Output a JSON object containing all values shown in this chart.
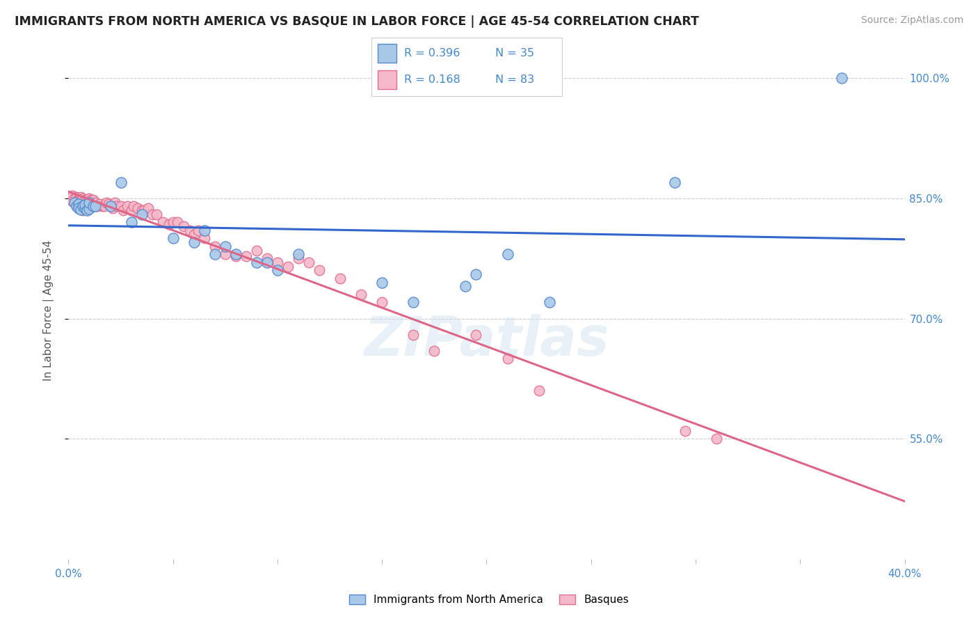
{
  "title": "IMMIGRANTS FROM NORTH AMERICA VS BASQUE IN LABOR FORCE | AGE 45-54 CORRELATION CHART",
  "source_text": "Source: ZipAtlas.com",
  "ylabel": "In Labor Force | Age 45-54",
  "xlim": [
    0.0,
    0.4
  ],
  "ylim": [
    0.4,
    1.02
  ],
  "ytick_positions": [
    0.55,
    0.7,
    0.85,
    1.0
  ],
  "ytick_labels": [
    "55.0%",
    "70.0%",
    "85.0%",
    "100.0%"
  ],
  "legend_labels": [
    "Immigrants from North America",
    "Basques"
  ],
  "blue_R": 0.396,
  "blue_N": 35,
  "pink_R": 0.168,
  "pink_N": 83,
  "blue_color": "#a8c8e8",
  "pink_color": "#f5b8c8",
  "blue_edge_color": "#5588cc",
  "pink_edge_color": "#e07090",
  "blue_line_color": "#3366cc",
  "pink_line_color": "#dd6688",
  "title_color": "#222222",
  "axis_label_color": "#4488cc",
  "source_color": "#999999",
  "watermark": "ZIPatlas",
  "blue_scatter_x": [
    0.003,
    0.004,
    0.005,
    0.005,
    0.006,
    0.007,
    0.008,
    0.008,
    0.009,
    0.01,
    0.01,
    0.012,
    0.013,
    0.02,
    0.025,
    0.03,
    0.035,
    0.05,
    0.06,
    0.065,
    0.07,
    0.075,
    0.08,
    0.09,
    0.095,
    0.1,
    0.11,
    0.15,
    0.165,
    0.19,
    0.195,
    0.21,
    0.23,
    0.29,
    0.37
  ],
  "blue_scatter_y": [
    0.845,
    0.84,
    0.843,
    0.838,
    0.836,
    0.84,
    0.838,
    0.842,
    0.835,
    0.837,
    0.845,
    0.84,
    0.84,
    0.84,
    0.87,
    0.82,
    0.83,
    0.8,
    0.795,
    0.81,
    0.78,
    0.79,
    0.78,
    0.77,
    0.77,
    0.76,
    0.78,
    0.745,
    0.72,
    0.74,
    0.755,
    0.78,
    0.72,
    0.87,
    1.0
  ],
  "pink_scatter_x": [
    0.001,
    0.002,
    0.002,
    0.003,
    0.003,
    0.004,
    0.004,
    0.004,
    0.005,
    0.005,
    0.005,
    0.005,
    0.006,
    0.006,
    0.006,
    0.006,
    0.007,
    0.007,
    0.007,
    0.007,
    0.008,
    0.008,
    0.008,
    0.009,
    0.009,
    0.01,
    0.01,
    0.011,
    0.011,
    0.012,
    0.012,
    0.013,
    0.014,
    0.015,
    0.016,
    0.017,
    0.018,
    0.019,
    0.02,
    0.021,
    0.022,
    0.023,
    0.025,
    0.026,
    0.028,
    0.03,
    0.031,
    0.033,
    0.035,
    0.036,
    0.038,
    0.04,
    0.042,
    0.045,
    0.048,
    0.05,
    0.052,
    0.055,
    0.058,
    0.06,
    0.062,
    0.065,
    0.07,
    0.075,
    0.08,
    0.085,
    0.09,
    0.095,
    0.1,
    0.105,
    0.11,
    0.115,
    0.12,
    0.13,
    0.14,
    0.15,
    0.165,
    0.175,
    0.195,
    0.21,
    0.225,
    0.295,
    0.31
  ],
  "pink_scatter_y": [
    0.85,
    0.853,
    0.846,
    0.85,
    0.845,
    0.852,
    0.845,
    0.84,
    0.85,
    0.848,
    0.843,
    0.838,
    0.852,
    0.848,
    0.843,
    0.838,
    0.85,
    0.845,
    0.84,
    0.835,
    0.848,
    0.843,
    0.838,
    0.848,
    0.843,
    0.85,
    0.84,
    0.848,
    0.843,
    0.848,
    0.84,
    0.845,
    0.84,
    0.843,
    0.84,
    0.84,
    0.845,
    0.843,
    0.84,
    0.838,
    0.845,
    0.84,
    0.84,
    0.835,
    0.84,
    0.835,
    0.84,
    0.838,
    0.835,
    0.835,
    0.838,
    0.83,
    0.83,
    0.82,
    0.818,
    0.82,
    0.82,
    0.815,
    0.81,
    0.805,
    0.81,
    0.8,
    0.79,
    0.78,
    0.778,
    0.778,
    0.785,
    0.775,
    0.77,
    0.765,
    0.775,
    0.77,
    0.76,
    0.75,
    0.73,
    0.72,
    0.68,
    0.66,
    0.68,
    0.65,
    0.61,
    0.56,
    0.55
  ]
}
